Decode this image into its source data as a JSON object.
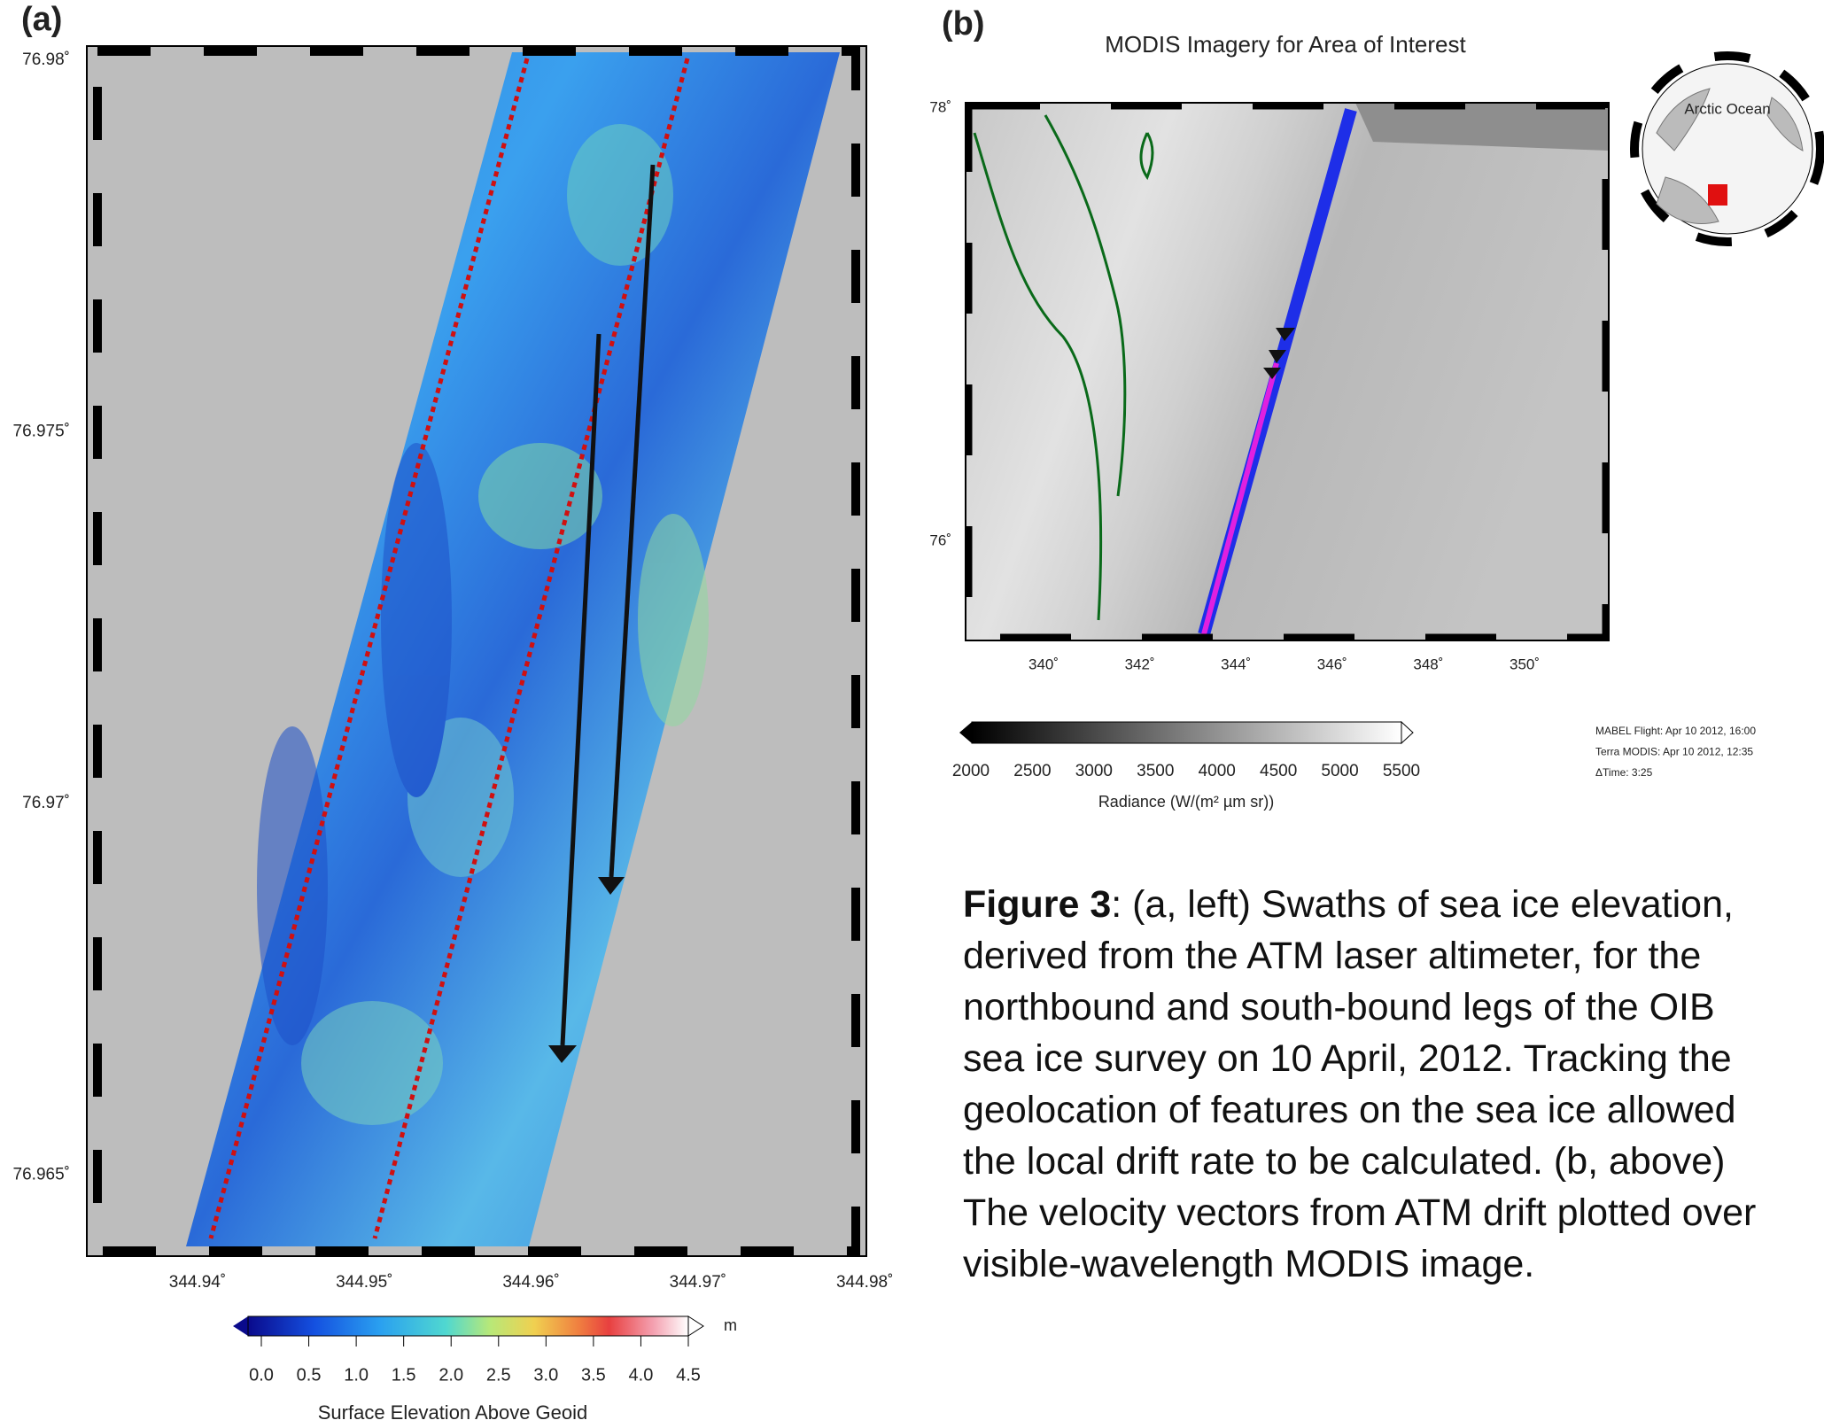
{
  "panel_a": {
    "label": "(a)",
    "lat_ticks": [
      "76.98˚",
      "76.975˚",
      "76.97˚",
      "76.965˚"
    ],
    "lon_ticks": [
      "344.94˚",
      "344.95˚",
      "344.96˚",
      "344.97˚",
      "344.98˚"
    ],
    "colorbar": {
      "ticks": [
        "0.0",
        "0.5",
        "1.0",
        "1.5",
        "2.0",
        "2.5",
        "3.0",
        "3.5",
        "4.0",
        "4.5"
      ],
      "unit": "m",
      "title": "Surface Elevation Above Geoid"
    }
  },
  "panel_b": {
    "label": "(b)",
    "title": "MODIS Imagery for Area of Interest",
    "lat_ticks": [
      "78˚",
      "76˚"
    ],
    "lon_ticks": [
      "340˚",
      "342˚",
      "344˚",
      "346˚",
      "348˚",
      "350˚"
    ],
    "inset_label": "Arctic Ocean",
    "colorbar": {
      "ticks": [
        "2000",
        "2500",
        "3000",
        "3500",
        "4000",
        "4500",
        "5000",
        "5500"
      ],
      "title": "Radiance (W/(m² µm sr))"
    },
    "notes": [
      "MABEL Flight: Apr 10 2012, 16:00",
      "Terra MODIS: Apr 10 2012, 12:35",
      "ΔTime: 3:25"
    ]
  },
  "caption": {
    "lead": "Figure 3",
    "lines": [
      ": (a, left) Swaths of sea ice elevation,",
      "derived from the ATM laser altimeter, for the",
      "northbound and south-bound legs of the OIB",
      "sea ice survey on 10 April, 2012. Tracking the",
      "geolocation of features on the sea ice allowed",
      "the local drift rate to be calculated. (b, above)",
      "The velocity vectors from ATM drift plotted over",
      "visible-wavelength MODIS image."
    ]
  }
}
